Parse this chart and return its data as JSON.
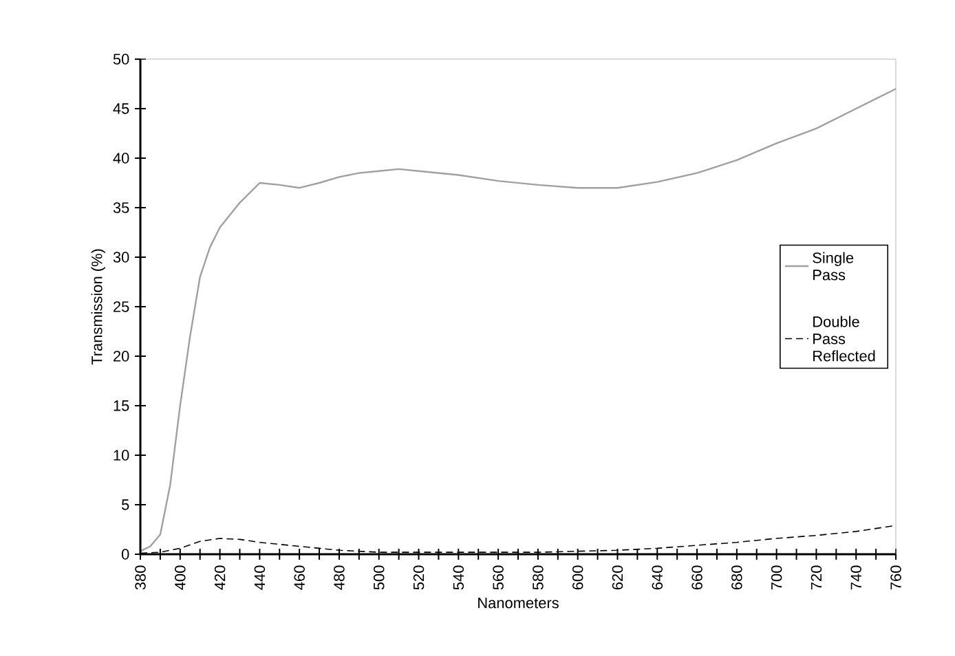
{
  "chart_data": {
    "type": "line",
    "xlabel": "Nanometers",
    "ylabel": "Transmission (%)",
    "xlim": [
      380,
      760
    ],
    "ylim": [
      0,
      50
    ],
    "xticks": [
      380,
      {
        "value": 390,
        "label": null
      },
      400,
      {
        "value": 410,
        "label": null
      },
      420,
      {
        "value": 430,
        "label": null
      },
      440,
      {
        "value": 450,
        "label": null
      },
      460,
      {
        "value": 470,
        "label": null
      },
      480,
      {
        "value": 490,
        "label": null
      },
      500,
      {
        "value": 510,
        "label": null
      },
      520,
      {
        "value": 530,
        "label": null
      },
      540,
      {
        "value": 550,
        "label": null
      },
      560,
      {
        "value": 570,
        "label": null
      },
      580,
      {
        "value": 590,
        "label": null
      },
      600,
      {
        "value": 610,
        "label": null
      },
      620,
      {
        "value": 630,
        "label": null
      },
      640,
      {
        "value": 650,
        "label": null
      },
      660,
      {
        "value": 670,
        "label": null
      },
      680,
      {
        "value": 690,
        "label": null
      },
      700,
      {
        "value": 710,
        "label": null
      },
      720,
      {
        "value": 730,
        "label": null
      },
      740,
      {
        "value": 750,
        "label": null
      },
      760
    ],
    "yticks": [
      0,
      5,
      10,
      15,
      20,
      25,
      30,
      35,
      40,
      45,
      50
    ],
    "grid": false,
    "legend": "right",
    "marker": "none",
    "series": [
      {
        "name": "Single Pass",
        "color": "#a0a0a0",
        "line_style": "solid",
        "x": [
          380,
          385,
          390,
          395,
          400,
          405,
          410,
          415,
          420,
          430,
          440,
          450,
          460,
          470,
          480,
          490,
          500,
          510,
          520,
          540,
          560,
          580,
          600,
          620,
          640,
          660,
          680,
          700,
          720,
          740,
          760
        ],
        "values": [
          0.3,
          0.8,
          2,
          7,
          15,
          22,
          28,
          31,
          33,
          35.5,
          37.5,
          37.3,
          37,
          37.5,
          38.1,
          38.5,
          38.7,
          38.9,
          38.7,
          38.3,
          37.7,
          37.3,
          37,
          37,
          37.6,
          38.5,
          39.8,
          41.5,
          43,
          45,
          47
        ]
      },
      {
        "name": "Double Pass Reflected",
        "color": "#000000",
        "line_style": "dashed",
        "x": [
          380,
          390,
          400,
          410,
          420,
          430,
          440,
          460,
          480,
          500,
          540,
          580,
          600,
          620,
          640,
          660,
          680,
          700,
          720,
          740,
          760
        ],
        "values": [
          0.1,
          0.2,
          0.6,
          1.3,
          1.6,
          1.5,
          1.2,
          0.8,
          0.4,
          0.2,
          0.2,
          0.2,
          0.3,
          0.4,
          0.6,
          0.9,
          1.2,
          1.6,
          1.9,
          2.3,
          2.9
        ]
      }
    ]
  }
}
